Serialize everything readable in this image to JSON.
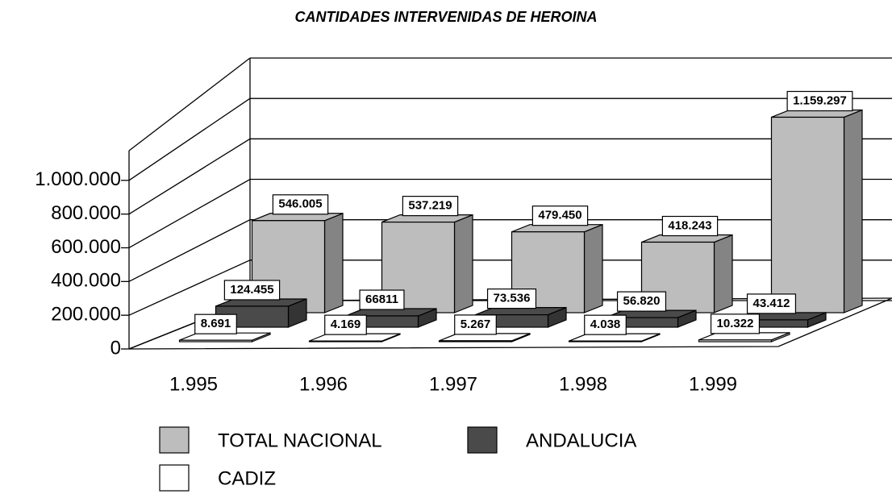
{
  "chart_data": {
    "type": "bar3d",
    "title": "CANTIDADES INTERVENIDAS DE HEROINA",
    "categories": [
      "1.995",
      "1.996",
      "1.997",
      "1.998",
      "1.999"
    ],
    "series": [
      {
        "name": "TOTAL NACIONAL",
        "color": "#bdbdbd",
        "values": [
          546005,
          537219,
          479450,
          418243,
          1159297
        ],
        "value_labels": [
          "546.005",
          "537.219",
          "479.450",
          "418.243",
          "1.159.297"
        ]
      },
      {
        "name": "ANDALUCIA",
        "color": "#4a4a4a",
        "values": [
          124455,
          66811,
          73536,
          56820,
          43412
        ],
        "value_labels": [
          "124.455",
          "66811",
          "73.536",
          "56.820",
          "43.412"
        ]
      },
      {
        "name": "CADIZ",
        "color": "#ffffff",
        "values": [
          8691,
          4169,
          5267,
          4038,
          10322
        ],
        "value_labels": [
          "8.691",
          "4.169",
          "5.267",
          "4.038",
          "10.322"
        ]
      }
    ],
    "ylim": [
      0,
      1200000
    ],
    "yticks": [
      0,
      {
        "value": 200000,
        "label": "200.000"
      },
      {
        "value": 400000,
        "label": "400.000"
      },
      {
        "value": 600000,
        "label": "600.000"
      },
      {
        "value": 800000,
        "label": "800.000"
      },
      {
        "value": 1000000,
        "label": "1.000.000"
      }
    ],
    "grid": true
  }
}
